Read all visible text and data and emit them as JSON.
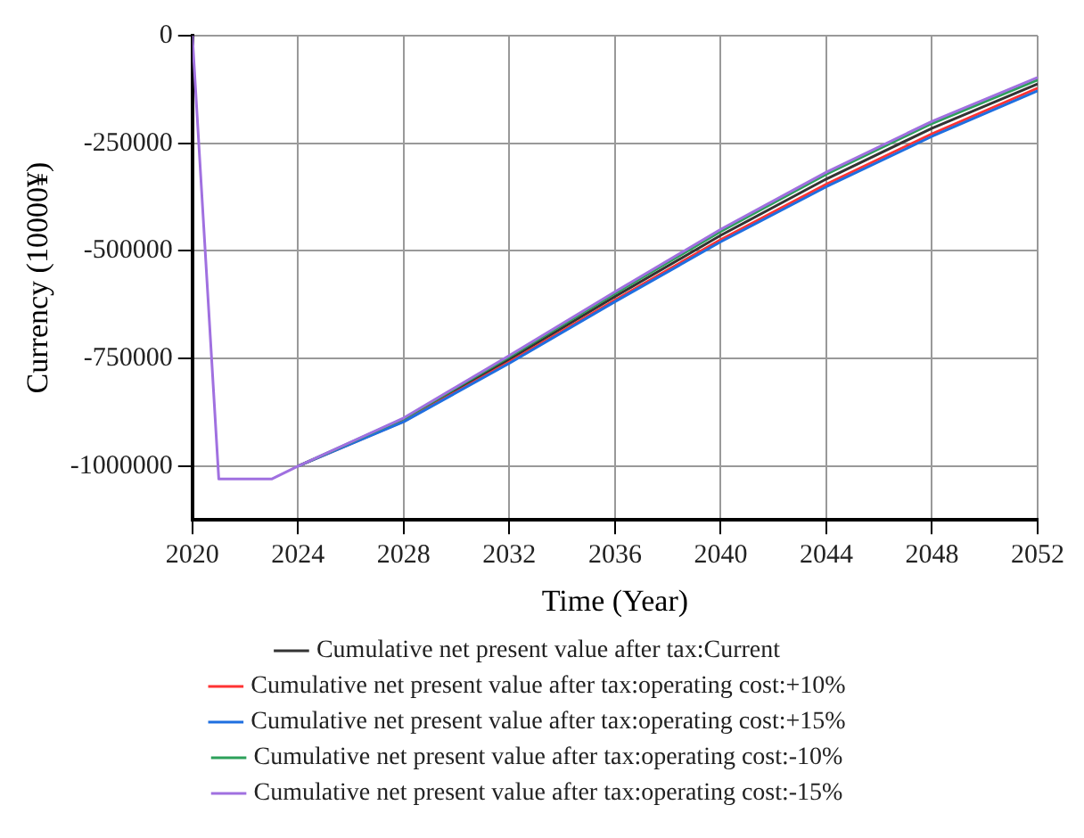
{
  "chart_data": {
    "type": "line",
    "xlabel": "Time (Year)",
    "ylabel": "Currency (10000¥)",
    "x": [
      2020,
      2021,
      2023,
      2024,
      2028,
      2032,
      2036,
      2040,
      2044,
      2048,
      2052
    ],
    "xlim": [
      2020,
      2052
    ],
    "xticks": [
      2020,
      2024,
      2028,
      2032,
      2036,
      2040,
      2044,
      2048,
      2052
    ],
    "ylim": [
      -1125000,
      0
    ],
    "yticks": [
      -1000000,
      -750000,
      -500000,
      -250000,
      0
    ],
    "grid": true,
    "legend": "bottom",
    "marker": "none",
    "line_style": "solid",
    "series": [
      {
        "name": "Cumulative net present value after tax:Current",
        "color": "#333333",
        "values": [
          null,
          null,
          null,
          -1000000,
          -893000,
          -752000,
          -606000,
          -464000,
          -333000,
          -215000,
          -112000
        ]
      },
      {
        "name": "Cumulative net present value after tax:operating cost:+10%",
        "color": "#ff3333",
        "values": [
          null,
          null,
          null,
          -1000000,
          -896000,
          -758000,
          -614000,
          -474000,
          -345000,
          -228000,
          -122000
        ]
      },
      {
        "name": "Cumulative net present value after tax:operating cost:+15%",
        "color": "#1f6fe0",
        "values": [
          null,
          null,
          null,
          -1000000,
          -897000,
          -761000,
          -618000,
          -479000,
          -351000,
          -234000,
          -128000
        ]
      },
      {
        "name": "Cumulative net present value after tax:operating cost:-10%",
        "color": "#2ca05a",
        "values": [
          null,
          null,
          null,
          -1000000,
          -890000,
          -746000,
          -599000,
          -455000,
          -322000,
          -204000,
          -103000
        ]
      },
      {
        "name": "Cumulative net present value after tax:operating cost:-15%",
        "color": "#a070e0",
        "values": [
          0,
          -1030000,
          -1030000,
          -1000000,
          -888000,
          -743000,
          -595000,
          -450000,
          -317000,
          -199000,
          -97000
        ]
      }
    ]
  }
}
